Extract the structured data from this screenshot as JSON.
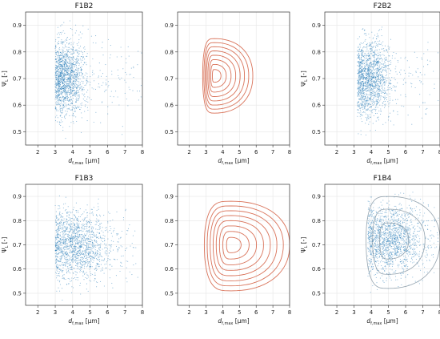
{
  "colors": {
    "scatter": "#1f77b4",
    "contour_red": "#d9735a",
    "contour_grey": "#8a9aa6",
    "grid": "#e6e6e6"
  },
  "chart_data": [
    {
      "type": "scatter",
      "title": "F1B2",
      "xlabel": "d_f,max [μm]",
      "ylabel": "Ψ_L [-]",
      "xlim": [
        1.3,
        8
      ],
      "ylim": [
        0.45,
        0.95
      ],
      "xticks": [
        2,
        3,
        4,
        5,
        6,
        7,
        8
      ],
      "yticks": [
        0.5,
        0.6,
        0.7,
        0.8,
        0.9
      ],
      "grid": true,
      "series": [
        {
          "points_summary": {
            "x_center": 3.7,
            "x_min": 3.0,
            "x_max": 8.0,
            "y_center": 0.7,
            "y_min": 0.45,
            "y_max": 0.92,
            "density": "high"
          }
        }
      ]
    },
    {
      "type": "contour",
      "title": "",
      "xlabel": "d_f,max [μm]",
      "ylabel": "",
      "xlim": [
        1.3,
        8
      ],
      "ylim": [
        0.45,
        0.95
      ],
      "xticks": [
        2,
        3,
        4,
        5,
        6,
        7,
        8
      ],
      "yticks": [
        0.5,
        0.6,
        0.7,
        0.8,
        0.9
      ],
      "grid": true,
      "contours": {
        "center": [
          3.5,
          0.71
        ],
        "levels": 8,
        "outer_x_range": [
          2.8,
          5.8
        ],
        "outer_y_range": [
          0.57,
          0.85
        ]
      }
    },
    {
      "type": "scatter",
      "title": "F2B2",
      "xlabel": "d_f,max [μm]",
      "ylabel": "Ψ_L [-]",
      "xlim": [
        1.3,
        8
      ],
      "ylim": [
        0.45,
        0.95
      ],
      "xticks": [
        2,
        3,
        4,
        5,
        6,
        7,
        8
      ],
      "yticks": [
        0.5,
        0.6,
        0.7,
        0.8,
        0.9
      ],
      "grid": true,
      "series": [
        {
          "points_summary": {
            "x_center": 4.0,
            "x_min": 3.2,
            "x_max": 8.0,
            "y_center": 0.7,
            "y_min": 0.48,
            "y_max": 0.9,
            "density": "high"
          }
        }
      ]
    },
    {
      "type": "scatter",
      "title": "F1B3",
      "xlabel": "d_f,max [μm]",
      "ylabel": "Ψ_L [-]",
      "xlim": [
        1.3,
        8
      ],
      "ylim": [
        0.45,
        0.95
      ],
      "xticks": [
        2,
        3,
        4,
        5,
        6,
        7,
        8
      ],
      "yticks": [
        0.5,
        0.6,
        0.7,
        0.8,
        0.9
      ],
      "grid": true,
      "series": [
        {
          "points_summary": {
            "x_center": 4.3,
            "x_min": 3.0,
            "x_max": 8.0,
            "y_center": 0.7,
            "y_min": 0.45,
            "y_max": 0.92,
            "density": "high"
          }
        }
      ]
    },
    {
      "type": "contour",
      "title": "",
      "xlabel": "d_f,max [μm]",
      "ylabel": "",
      "xlim": [
        1.3,
        8
      ],
      "ylim": [
        0.45,
        0.95
      ],
      "xticks": [
        2,
        3,
        4,
        5,
        6,
        7,
        8
      ],
      "yticks": [
        0.5,
        0.6,
        0.7,
        0.8,
        0.9
      ],
      "grid": true,
      "contours": {
        "center": [
          4.5,
          0.7
        ],
        "levels": 8,
        "outer_x_range": [
          2.9,
          8.0
        ],
        "outer_y_range": [
          0.51,
          0.88
        ]
      }
    },
    {
      "type": "scatter",
      "title": "F1B4",
      "xlabel": "d_f,max [μm]",
      "ylabel": "Ψ_L [-]",
      "xlim": [
        1.3,
        8
      ],
      "ylim": [
        0.45,
        0.95
      ],
      "xticks": [
        2,
        3,
        4,
        5,
        6,
        7,
        8
      ],
      "yticks": [
        0.5,
        0.6,
        0.7,
        0.8,
        0.9
      ],
      "grid": true,
      "series": [
        {
          "points_summary": {
            "x_center": 5.2,
            "x_min": 3.8,
            "x_max": 8.0,
            "y_center": 0.72,
            "y_min": 0.46,
            "y_max": 0.92,
            "density": "high"
          }
        }
      ],
      "contours": {
        "center": [
          5.0,
          0.72
        ],
        "levels": 3,
        "outer_x_range": [
          3.7,
          8.0
        ],
        "outer_y_range": [
          0.52,
          0.9
        ]
      }
    }
  ]
}
